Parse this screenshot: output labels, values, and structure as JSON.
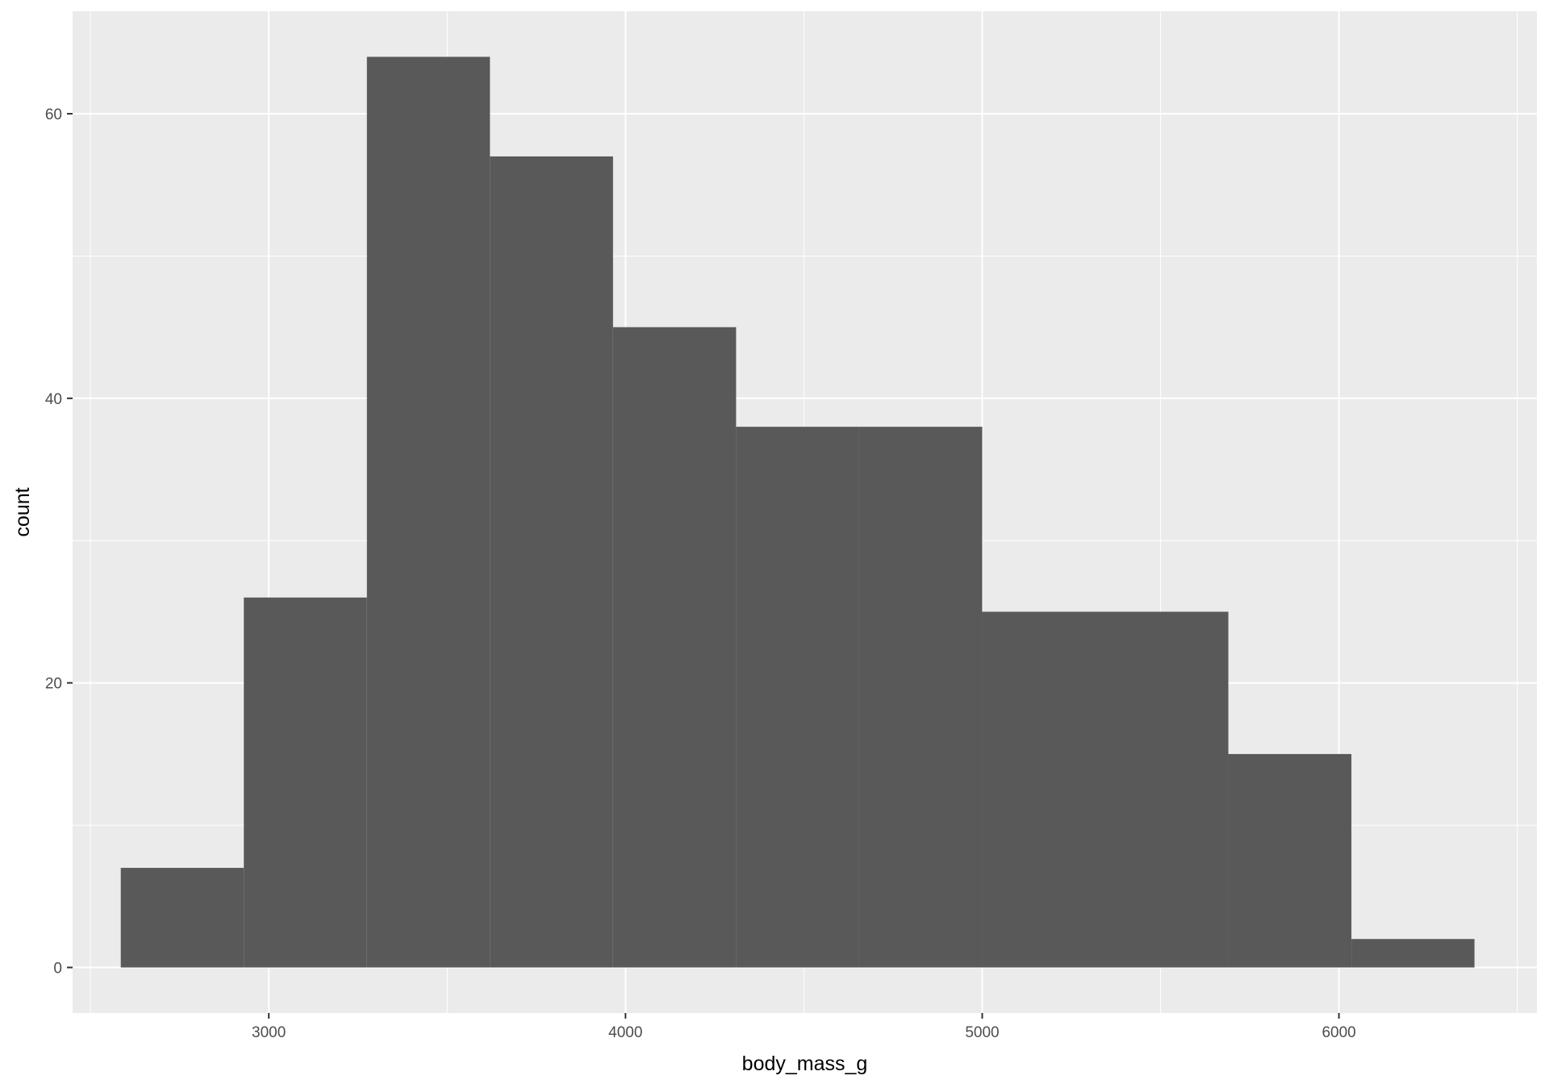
{
  "chart_data": {
    "type": "bar",
    "subtype": "histogram",
    "xlabel": "body_mass_g",
    "ylabel": "count",
    "xlim": [
      2450,
      6555
    ],
    "ylim": [
      -3.2,
      67.2
    ],
    "x_ticks": [
      3000,
      4000,
      5000,
      6000
    ],
    "x_tick_labels": [
      "3000",
      "4000",
      "5000",
      "6000"
    ],
    "y_ticks": [
      0,
      20,
      40,
      60
    ],
    "y_tick_labels": [
      "0",
      "20",
      "40",
      "60"
    ],
    "x_minor_ticks": [
      2500,
      3500,
      4500,
      5500,
      6500
    ],
    "y_minor_ticks": [
      10,
      30,
      50
    ],
    "grid": true,
    "bins": [
      {
        "x0": 2585,
        "x1": 2930,
        "count": 7
      },
      {
        "x0": 2930,
        "x1": 3275,
        "count": 26
      },
      {
        "x0": 3275,
        "x1": 3620,
        "count": 64
      },
      {
        "x0": 3620,
        "x1": 3965,
        "count": 57
      },
      {
        "x0": 3965,
        "x1": 4310,
        "count": 45
      },
      {
        "x0": 4310,
        "x1": 4655,
        "count": 38
      },
      {
        "x0": 4655,
        "x1": 5000,
        "count": 38
      },
      {
        "x0": 5000,
        "x1": 5345,
        "count": 25
      },
      {
        "x0": 5345,
        "x1": 5690,
        "count": 25
      },
      {
        "x0": 5690,
        "x1": 6035,
        "count": 15
      },
      {
        "x0": 6035,
        "x1": 6380,
        "count": 2
      }
    ],
    "colors": {
      "panel_background": "#EBEBEB",
      "grid_major": "#FFFFFF",
      "bar_fill": "#595959",
      "tick_text": "#4D4D4D",
      "axis_title": "#000000"
    }
  }
}
